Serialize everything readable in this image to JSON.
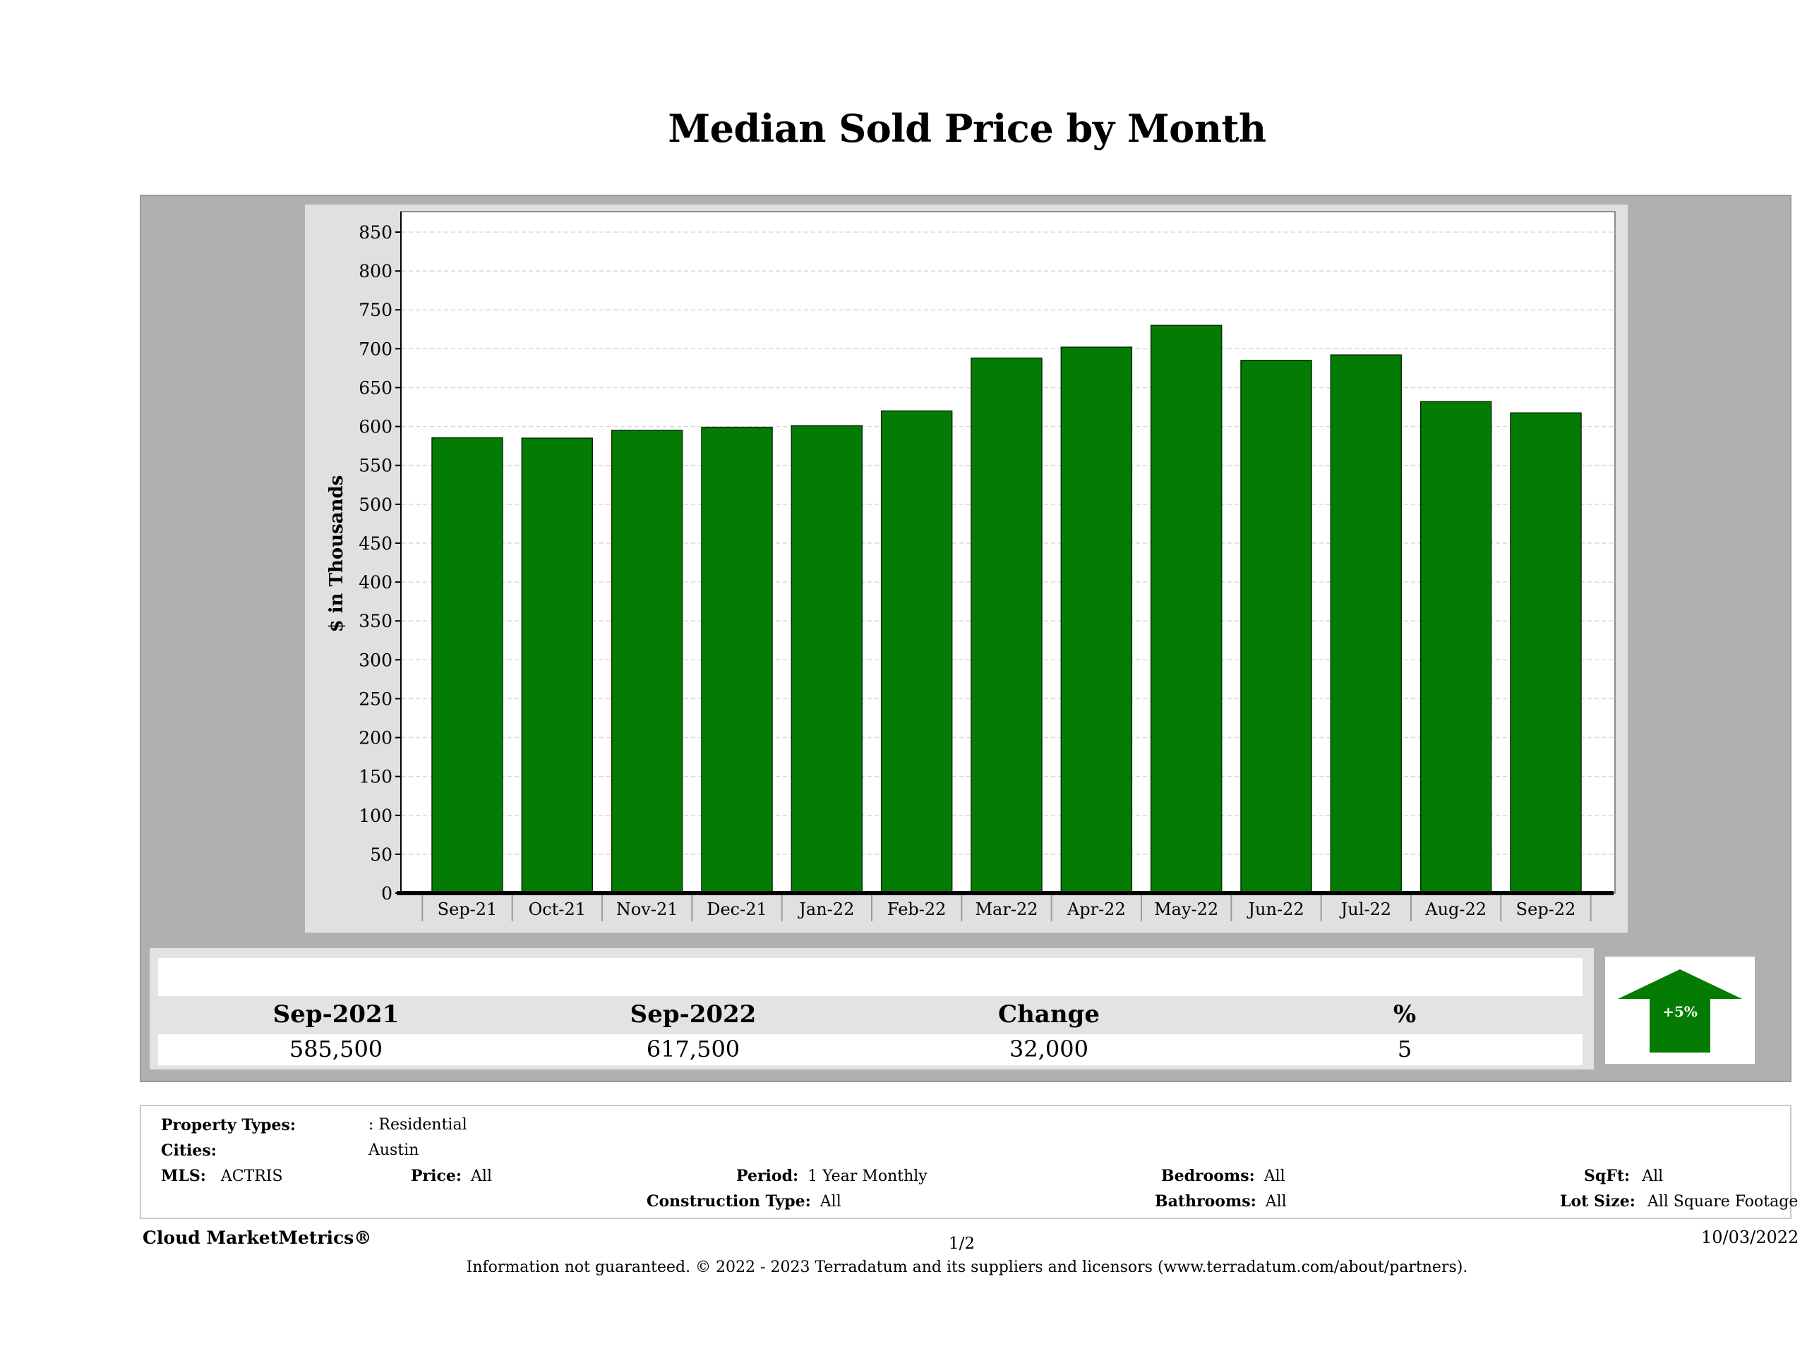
{
  "chart_data": {
    "type": "bar",
    "title": "Median Sold Price by Month",
    "ylabel": "$ in Thousands",
    "xlabel": "",
    "categories": [
      "Sep-21",
      "Oct-21",
      "Nov-21",
      "Dec-21",
      "Jan-22",
      "Feb-22",
      "Mar-22",
      "Apr-22",
      "May-22",
      "Jun-22",
      "Jul-22",
      "Aug-22",
      "Sep-22"
    ],
    "values": [
      585.5,
      585,
      595,
      599,
      601,
      620,
      688,
      702,
      730,
      685,
      692,
      632,
      617.5
    ],
    "yticks": [
      0,
      50,
      100,
      150,
      200,
      250,
      300,
      350,
      400,
      450,
      500,
      550,
      600,
      650,
      700,
      750,
      800,
      850
    ],
    "ylim": [
      0,
      875
    ],
    "grid": true,
    "bar_color": "#047c04"
  },
  "summary": {
    "headers": {
      "start": "Sep-2021",
      "end": "Sep-2022",
      "change": "Change",
      "percent": "%"
    },
    "values": {
      "start": "585,500",
      "end": "617,500",
      "change": "32,000",
      "percent": "5"
    },
    "arrow_label": "+5%",
    "arrow_color": "#047c04"
  },
  "filters": {
    "property_types": {
      "label": "Property Types:",
      "value": ": Residential"
    },
    "cities": {
      "label": "Cities:",
      "value": "Austin"
    },
    "mls": {
      "label": "MLS:",
      "value": "ACTRIS"
    },
    "price": {
      "label": "Price:",
      "value": "All"
    },
    "period": {
      "label": "Period:",
      "value": "1 Year Monthly"
    },
    "construction_type": {
      "label": "Construction Type:",
      "value": "All"
    },
    "bedrooms": {
      "label": "Bedrooms:",
      "value": "All"
    },
    "bathrooms": {
      "label": "Bathrooms:",
      "value": "All"
    },
    "sqft": {
      "label": "SqFt:",
      "value": "All"
    },
    "lot_size": {
      "label": "Lot Size:",
      "value": "All Square Footage"
    }
  },
  "footer": {
    "brand": "Cloud MarketMetrics®",
    "page": "1/2",
    "date": "10/03/2022",
    "disclaimer": "Information not guaranteed. © 2022 - 2023 Terradatum and its suppliers and licensors (www.terradatum.com/about/partners)."
  }
}
